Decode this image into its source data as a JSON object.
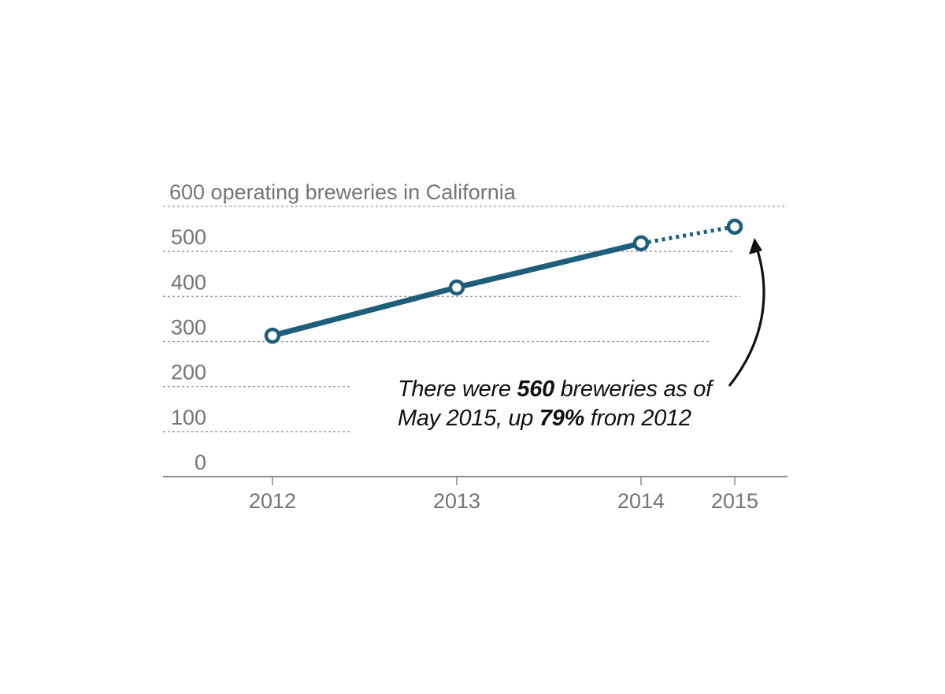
{
  "chart_data": {
    "type": "line",
    "title": "",
    "xlabel": "",
    "ylabel": "operating breweries in California",
    "categories": [
      "2012",
      "2013",
      "2014",
      "2015"
    ],
    "series": [
      {
        "values": [
          313,
          420,
          518,
          555
        ],
        "projected_from_index": 2,
        "color": "#1d5f7a"
      }
    ],
    "ylim": [
      0,
      600
    ],
    "yticks": [
      0,
      100,
      200,
      300,
      400,
      500,
      600
    ],
    "ytick_labels": [
      "0",
      "100",
      "200",
      "300",
      "400",
      "500",
      "600 operating breweries in California"
    ],
    "grid": "dotted horizontal",
    "legend": "none",
    "annotation": {
      "line1_pre": "There were ",
      "line1_bold": "560",
      "line1_post": " breweries as of",
      "line2_pre": "May 2015, up ",
      "line2_bold": "79%",
      "line2_post": " from 2012"
    }
  },
  "colors": {
    "series": "#1d5f7a",
    "grid": "#9a9a9a",
    "axis": "#8a8a8a",
    "tick_text": "#757575",
    "annotation_text": "#111111"
  }
}
